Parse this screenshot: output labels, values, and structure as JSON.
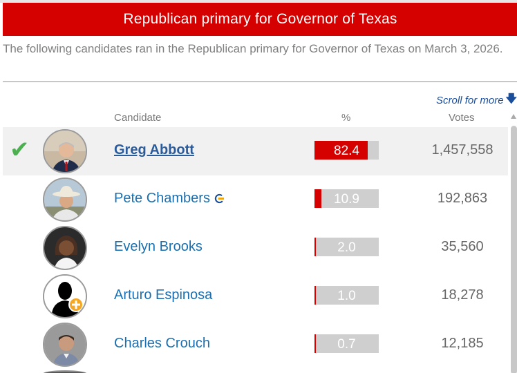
{
  "header": {
    "title": "Republican primary for Governor of Texas",
    "intro": "The following candidates ran in the Republican primary for Governor of Texas on March 3, 2026."
  },
  "table": {
    "scroll_hint": "Scroll for more",
    "columns": {
      "candidate": "Candidate",
      "pct": "%",
      "votes": "Votes"
    },
    "rows": [
      {
        "name": "Greg Abbott",
        "pct": "82.4",
        "pct_value": 82.4,
        "votes": "1,457,558",
        "winner": true,
        "incumbent": false
      },
      {
        "name": "Pete Chambers",
        "pct": "10.9",
        "pct_value": 10.9,
        "votes": "192,863",
        "winner": false,
        "incumbent": true
      },
      {
        "name": "Evelyn Brooks",
        "pct": "2.0",
        "pct_value": 2.0,
        "votes": "35,560",
        "winner": false,
        "incumbent": false
      },
      {
        "name": "Arturo Espinosa",
        "pct": "1.0",
        "pct_value": 1.0,
        "votes": "18,278",
        "winner": false,
        "incumbent": false
      },
      {
        "name": "Charles Crouch",
        "pct": "0.7",
        "pct_value": 0.7,
        "votes": "12,185",
        "winner": false,
        "incumbent": false
      }
    ]
  },
  "colors": {
    "banner": "#d50000",
    "bar_fill": "#d50000",
    "bar_track": "#cfcfcf",
    "winner_check": "#4caf50",
    "link": "#1a6fb0"
  },
  "icons": {
    "winner": "checkmark-icon",
    "incumbent": "incumbent-c-icon",
    "scroll": "arrow-down-icon"
  }
}
